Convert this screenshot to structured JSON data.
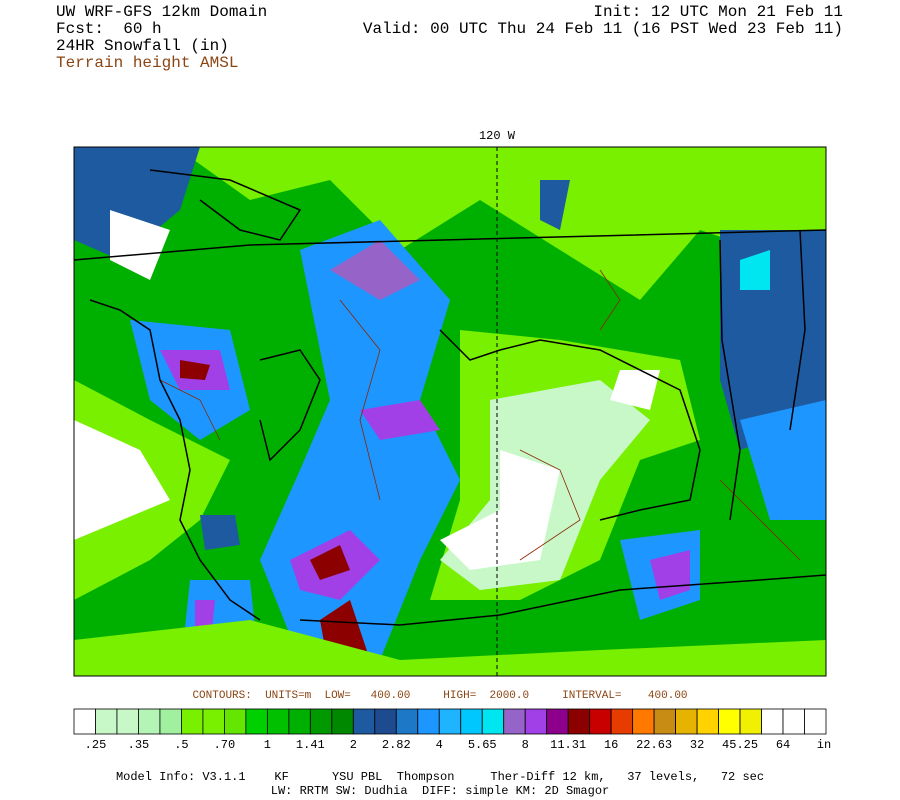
{
  "header": {
    "left": [
      "UW WRF-GFS 12km Domain",
      "Fcst:  60 h",
      "24HR Snowfall (in)",
      "Terrain height AMSL"
    ],
    "right": [
      "Init: 12 UTC Mon 21 Feb 11",
      "Valid: 00 UTC Thu 24 Feb 11 (16 PST Wed 23 Feb 11)"
    ]
  },
  "map": {
    "meridian_label": "120 W"
  },
  "contours": "CONTOURS:  UNITS=m  LOW=   400.00     HIGH=  2000.0     INTERVAL=    400.00",
  "colorbar": {
    "colors": [
      "#ffffff",
      "#c8f8c8",
      "#c8f8c8",
      "#b4f4b4",
      "#a0f0a0",
      "#78f000",
      "#78f000",
      "#64e600",
      "#00d000",
      "#00c000",
      "#00b000",
      "#009a00",
      "#008800",
      "#1e5aa0",
      "#1e4a90",
      "#1e78c8",
      "#1e96ff",
      "#1eb4ff",
      "#00c8ff",
      "#00e6f0",
      "#9664c8",
      "#a040e6",
      "#8c008c",
      "#8c0000",
      "#c80000",
      "#e63c00",
      "#ff7800",
      "#c88c14",
      "#e6b400",
      "#ffd200",
      "#ffff00",
      "#f0f000",
      "#ffffff",
      "#ffffff",
      "#ffffff"
    ],
    "labels": [
      ".25",
      ".35",
      ".5",
      ".70",
      "1",
      "1.41",
      "2",
      "2.82",
      "4",
      "5.65",
      "8",
      "11.31",
      "16",
      "22.63",
      "32",
      "45.25",
      "64"
    ],
    "unit": "in"
  },
  "footer": [
    "Model Info: V3.1.1    KF      YSU PBL  Thompson     Ther-Diff 12 km,   37 levels,   72 sec",
    "LW: RRTM SW: Dudhia  DIFF: simple KM: 2D Smagor"
  ]
}
